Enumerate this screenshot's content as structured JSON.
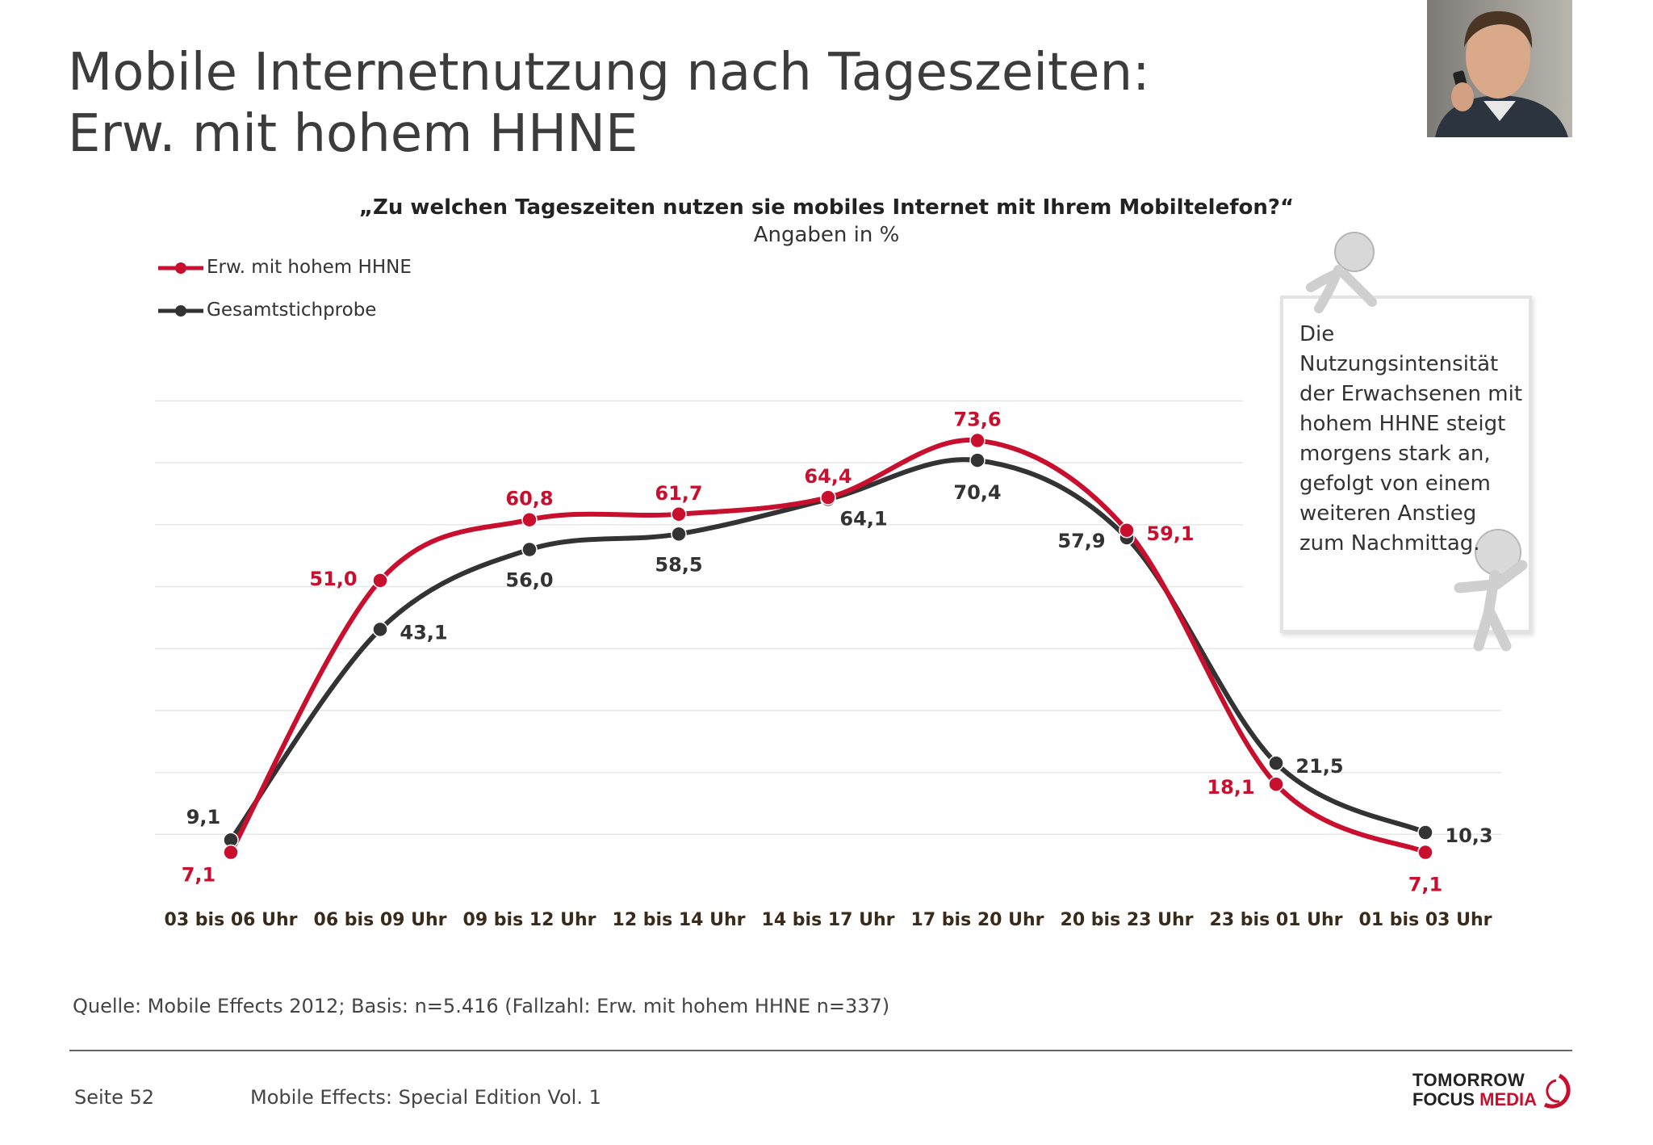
{
  "title": {
    "line1": "Mobile Internetnutzung nach Tageszeiten:",
    "line2": "Erw. mit hohem HHNE"
  },
  "note": "Die Nutzungsintensität der Erwachsenen mit hohem HHNE steigt morgens stark an, gefolgt von einem weiteren Anstieg zum Nachmittag.",
  "footer": {
    "source": "Quelle: Mobile Effects 2012; Basis: n=5.416 (Fallzahl: Erw. mit hohem HHNE n=337)",
    "page": "Seite 52",
    "publication": "Mobile Effects: Special Edition Vol. 1",
    "logo_line1": "TOMORROW",
    "logo_line2a": "FOCUS ",
    "logo_line2b": "MEDIA"
  },
  "colors": {
    "red": "#c8102e",
    "dark": "#333333"
  },
  "chart_data": {
    "type": "line",
    "title": "„Zu welchen Tageszeiten nutzen sie mobiles Internet mit Ihrem Mobiltelefon?“",
    "subtitle": "Angaben in %",
    "categories": [
      "03 bis 06 Uhr",
      "06 bis 09 Uhr",
      "09 bis 12 Uhr",
      "12 bis 14 Uhr",
      "14 bis 17 Uhr",
      "17 bis 20 Uhr",
      "20 bis 23 Uhr",
      "23 bis 01 Uhr",
      "01 bis 03 Uhr"
    ],
    "series": [
      {
        "name": "Erw. mit hohem HHNE",
        "color": "#c8102e",
        "values": [
          7.1,
          51.0,
          60.8,
          61.7,
          64.4,
          73.6,
          59.1,
          18.1,
          7.1
        ],
        "labels": [
          "7,1",
          "51,0",
          "60,8",
          "61,7",
          "64,4",
          "73,6",
          "59,1",
          "18,1",
          "7,1"
        ]
      },
      {
        "name": "Gesamtstichprobe",
        "color": "#333333",
        "values": [
          9.1,
          43.1,
          56.0,
          58.5,
          64.1,
          70.4,
          57.9,
          21.5,
          10.3
        ],
        "labels": [
          "9,1",
          "43,1",
          "56,0",
          "58,5",
          "64,1",
          "70,4",
          "57,9",
          "21,5",
          "10,3"
        ]
      }
    ],
    "ylim": [
      0,
      90
    ],
    "grid": true,
    "legend": "top-left"
  }
}
